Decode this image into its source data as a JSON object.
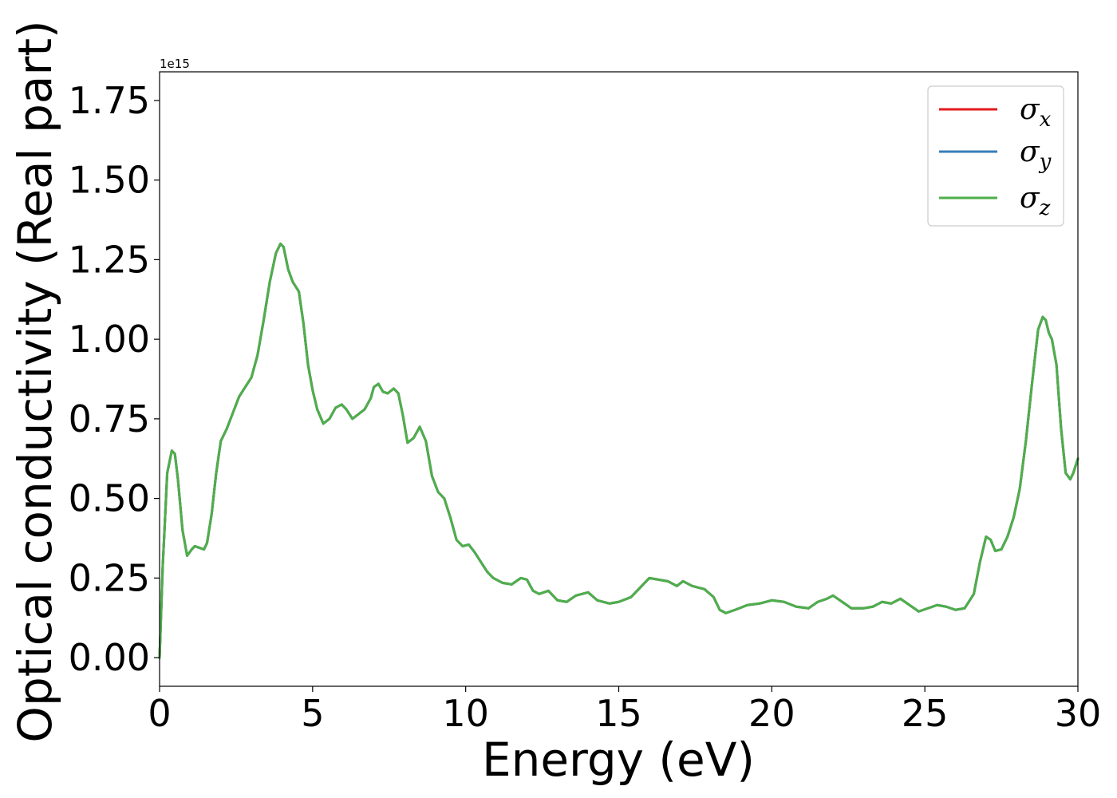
{
  "chart_data": {
    "type": "line",
    "title": "",
    "xlabel": "Energy (eV)",
    "ylabel": "Optical conductivity (Real part)",
    "y_offset_label": "1e15",
    "xlim": [
      0,
      30
    ],
    "ylim": [
      -0.09,
      1.84
    ],
    "x_ticks": [
      0,
      5,
      10,
      15,
      20,
      25,
      30
    ],
    "x_tick_labels": [
      "0",
      "5",
      "10",
      "15",
      "20",
      "25",
      "30"
    ],
    "y_ticks": [
      0.0,
      0.25,
      0.5,
      0.75,
      1.0,
      1.25,
      1.5,
      1.75
    ],
    "y_tick_labels": [
      "0.00",
      "0.25",
      "0.50",
      "0.75",
      "1.00",
      "1.25",
      "1.50",
      "1.75"
    ],
    "grid": false,
    "legend_position": "top-right",
    "x": [
      0,
      0.1,
      0.25,
      0.4,
      0.5,
      0.6,
      0.75,
      0.9,
      1.05,
      1.15,
      1.3,
      1.45,
      1.55,
      1.7,
      1.85,
      2.0,
      2.2,
      2.4,
      2.6,
      2.8,
      3.0,
      3.2,
      3.4,
      3.6,
      3.8,
      3.95,
      4.05,
      4.2,
      4.35,
      4.55,
      4.7,
      4.85,
      5.0,
      5.15,
      5.35,
      5.55,
      5.75,
      5.95,
      6.1,
      6.3,
      6.5,
      6.7,
      6.9,
      7.0,
      7.15,
      7.3,
      7.45,
      7.65,
      7.8,
      7.95,
      8.1,
      8.3,
      8.5,
      8.7,
      8.9,
      9.1,
      9.3,
      9.5,
      9.7,
      9.9,
      10.1,
      10.3,
      10.5,
      10.7,
      10.9,
      11.2,
      11.5,
      11.8,
      12.0,
      12.2,
      12.4,
      12.7,
      13.0,
      13.3,
      13.6,
      14.0,
      14.3,
      14.7,
      15.0,
      15.4,
      15.7,
      16.0,
      16.3,
      16.6,
      16.9,
      17.1,
      17.4,
      17.8,
      18.1,
      18.3,
      18.5,
      18.8,
      19.2,
      19.6,
      20.0,
      20.4,
      20.8,
      21.2,
      21.5,
      21.8,
      22.0,
      22.3,
      22.6,
      23.0,
      23.3,
      23.6,
      23.9,
      24.2,
      24.5,
      24.8,
      25.1,
      25.4,
      25.7,
      26.0,
      26.3,
      26.6,
      26.8,
      27.0,
      27.15,
      27.3,
      27.5,
      27.7,
      27.9,
      28.1,
      28.3,
      28.5,
      28.7,
      28.85,
      28.95,
      29.05,
      29.15,
      29.3,
      29.45,
      29.6,
      29.75,
      29.85,
      30.0
    ],
    "series": [
      {
        "name": "σx",
        "color": "#e41a1c",
        "values": [
          0.0,
          0.28,
          0.58,
          0.65,
          0.64,
          0.56,
          0.4,
          0.32,
          0.34,
          0.35,
          0.345,
          0.34,
          0.36,
          0.45,
          0.58,
          0.68,
          0.72,
          0.77,
          0.82,
          0.85,
          0.88,
          0.95,
          1.06,
          1.18,
          1.27,
          1.3,
          1.29,
          1.22,
          1.18,
          1.15,
          1.05,
          0.92,
          0.84,
          0.78,
          0.735,
          0.75,
          0.785,
          0.795,
          0.78,
          0.75,
          0.765,
          0.78,
          0.815,
          0.85,
          0.86,
          0.835,
          0.83,
          0.845,
          0.83,
          0.76,
          0.675,
          0.69,
          0.725,
          0.68,
          0.57,
          0.52,
          0.5,
          0.44,
          0.37,
          0.35,
          0.355,
          0.33,
          0.3,
          0.27,
          0.25,
          0.235,
          0.23,
          0.25,
          0.245,
          0.21,
          0.2,
          0.21,
          0.18,
          0.175,
          0.195,
          0.205,
          0.18,
          0.17,
          0.175,
          0.19,
          0.22,
          0.25,
          0.245,
          0.24,
          0.225,
          0.24,
          0.225,
          0.215,
          0.19,
          0.15,
          0.14,
          0.15,
          0.165,
          0.17,
          0.18,
          0.175,
          0.16,
          0.155,
          0.175,
          0.185,
          0.195,
          0.175,
          0.155,
          0.155,
          0.16,
          0.175,
          0.17,
          0.185,
          0.165,
          0.145,
          0.155,
          0.165,
          0.16,
          0.15,
          0.155,
          0.2,
          0.3,
          0.38,
          0.37,
          0.335,
          0.34,
          0.38,
          0.44,
          0.53,
          0.68,
          0.86,
          1.03,
          1.07,
          1.06,
          1.02,
          1.0,
          0.92,
          0.72,
          0.58,
          0.56,
          0.58,
          0.625
        ]
      },
      {
        "name": "σy",
        "color": "#377eb8",
        "values": [
          0.0,
          0.28,
          0.58,
          0.65,
          0.64,
          0.56,
          0.4,
          0.32,
          0.34,
          0.35,
          0.345,
          0.34,
          0.36,
          0.45,
          0.58,
          0.68,
          0.72,
          0.77,
          0.82,
          0.85,
          0.88,
          0.95,
          1.06,
          1.18,
          1.27,
          1.3,
          1.29,
          1.22,
          1.18,
          1.15,
          1.05,
          0.92,
          0.84,
          0.78,
          0.735,
          0.75,
          0.785,
          0.795,
          0.78,
          0.75,
          0.765,
          0.78,
          0.815,
          0.85,
          0.86,
          0.835,
          0.83,
          0.845,
          0.83,
          0.76,
          0.675,
          0.69,
          0.725,
          0.68,
          0.57,
          0.52,
          0.5,
          0.44,
          0.37,
          0.35,
          0.355,
          0.33,
          0.3,
          0.27,
          0.25,
          0.235,
          0.23,
          0.25,
          0.245,
          0.21,
          0.2,
          0.21,
          0.18,
          0.175,
          0.195,
          0.205,
          0.18,
          0.17,
          0.175,
          0.19,
          0.22,
          0.25,
          0.245,
          0.24,
          0.225,
          0.24,
          0.225,
          0.215,
          0.19,
          0.15,
          0.14,
          0.15,
          0.165,
          0.17,
          0.18,
          0.175,
          0.16,
          0.155,
          0.175,
          0.185,
          0.195,
          0.175,
          0.155,
          0.155,
          0.16,
          0.175,
          0.17,
          0.185,
          0.165,
          0.145,
          0.155,
          0.165,
          0.16,
          0.15,
          0.155,
          0.2,
          0.3,
          0.38,
          0.37,
          0.335,
          0.34,
          0.38,
          0.44,
          0.53,
          0.68,
          0.86,
          1.03,
          1.07,
          1.06,
          1.02,
          1.0,
          0.92,
          0.72,
          0.58,
          0.56,
          0.58,
          0.625
        ]
      },
      {
        "name": "σz",
        "color": "#4daf4a",
        "values": [
          0.0,
          0.28,
          0.58,
          0.65,
          0.64,
          0.56,
          0.4,
          0.32,
          0.34,
          0.35,
          0.345,
          0.34,
          0.36,
          0.45,
          0.58,
          0.68,
          0.72,
          0.77,
          0.82,
          0.85,
          0.88,
          0.95,
          1.06,
          1.18,
          1.27,
          1.3,
          1.29,
          1.22,
          1.18,
          1.15,
          1.05,
          0.92,
          0.84,
          0.78,
          0.735,
          0.75,
          0.785,
          0.795,
          0.78,
          0.75,
          0.765,
          0.78,
          0.815,
          0.85,
          0.86,
          0.835,
          0.83,
          0.845,
          0.83,
          0.76,
          0.675,
          0.69,
          0.725,
          0.68,
          0.57,
          0.52,
          0.5,
          0.44,
          0.37,
          0.35,
          0.355,
          0.33,
          0.3,
          0.27,
          0.25,
          0.235,
          0.23,
          0.25,
          0.245,
          0.21,
          0.2,
          0.21,
          0.18,
          0.175,
          0.195,
          0.205,
          0.18,
          0.17,
          0.175,
          0.19,
          0.22,
          0.25,
          0.245,
          0.24,
          0.225,
          0.24,
          0.225,
          0.215,
          0.19,
          0.15,
          0.14,
          0.15,
          0.165,
          0.17,
          0.18,
          0.175,
          0.16,
          0.155,
          0.175,
          0.185,
          0.195,
          0.175,
          0.155,
          0.155,
          0.16,
          0.175,
          0.17,
          0.185,
          0.165,
          0.145,
          0.155,
          0.165,
          0.16,
          0.15,
          0.155,
          0.2,
          0.3,
          0.38,
          0.37,
          0.335,
          0.34,
          0.38,
          0.44,
          0.53,
          0.68,
          0.86,
          1.03,
          1.07,
          1.06,
          1.02,
          1.0,
          0.92,
          0.72,
          0.58,
          0.56,
          0.58,
          0.625
        ]
      }
    ],
    "legend": [
      {
        "symbol": "σ",
        "sub": "x",
        "color": "#e41a1c"
      },
      {
        "symbol": "σ",
        "sub": "y",
        "color": "#377eb8"
      },
      {
        "symbol": "σ",
        "sub": "z",
        "color": "#4daf4a"
      }
    ]
  }
}
